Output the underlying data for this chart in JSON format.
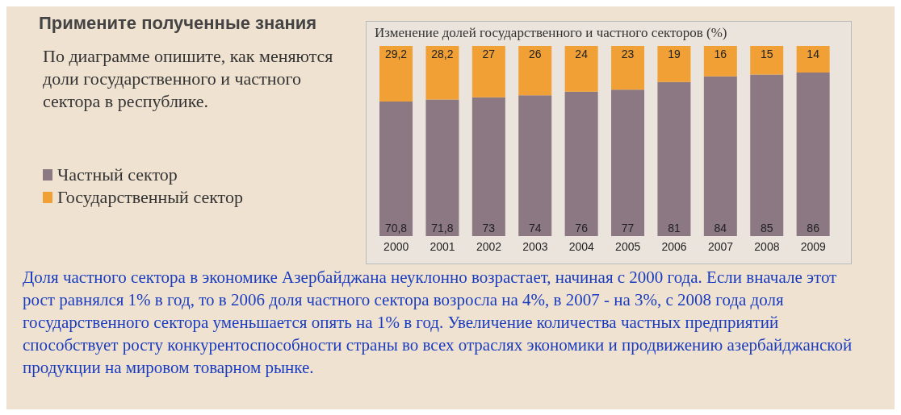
{
  "chart_data": {
    "type": "bar",
    "stacked": true,
    "title": "Изменение долей государственного и частного секторов (%)",
    "categories": [
      "2000",
      "2001",
      "2002",
      "2003",
      "2004",
      "2005",
      "2006",
      "2007",
      "2008",
      "2009"
    ],
    "series": [
      {
        "name": "Частный сектор",
        "color": "#8b7882",
        "values": [
          70.8,
          71.8,
          73,
          74,
          76,
          77,
          81,
          84,
          85,
          86
        ],
        "value_labels": [
          "70,8",
          "71,8",
          "73",
          "74",
          "76",
          "77",
          "81",
          "84",
          "85",
          "86"
        ]
      },
      {
        "name": "Государственный сектор",
        "color": "#f0a035",
        "values": [
          29.2,
          28.2,
          27,
          26,
          24,
          23,
          19,
          16,
          15,
          14
        ],
        "value_labels": [
          "29,2",
          "28,2",
          "27",
          "26",
          "24",
          "23",
          "19",
          "16",
          "15",
          "14"
        ]
      }
    ],
    "legend": "left",
    "annotations": [
      "Примените полученные знания",
      "По диаграмме опишите, как меняются доли государственного и частного сектора в республике.",
      "Доля частного сектора в экономике Азербайджана неуклонно возрастает, начиная с 2000 года. Если вначале этот рост равнялся 1% в год, то в 2006 доля частного сектора возросла на 4%, в 2007 - на 3%, с 2008 года доля государственного сектора уменьшается опять на 1% в год. Увеличение количества частных предприятий способствует росту конкурентоспособности страны во всех отраслях экономики и продвижению азербайджанской продукции  на мировом товарном рынке."
    ]
  }
}
